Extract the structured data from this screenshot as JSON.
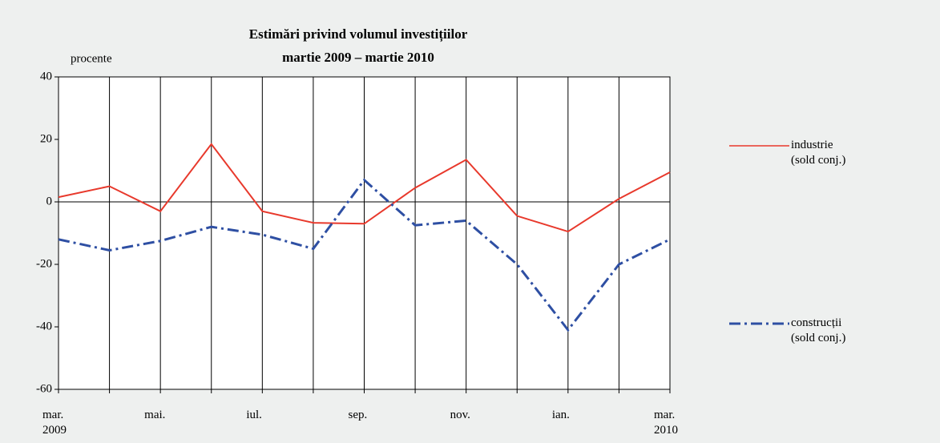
{
  "chart_data": {
    "type": "line",
    "title": "Estimări privind volumul investițiilor",
    "subtitle": "martie 2009 – martie 2010",
    "y_label": "procente",
    "categories": [
      "mar.\n2009",
      null,
      "mai.",
      null,
      "iul.",
      null,
      "sep.",
      null,
      "nov.",
      null,
      "ian.",
      null,
      "mar.\n2010"
    ],
    "series": [
      {
        "name": "industrie\n(sold conj.)",
        "color": "#e8392c",
        "dash": "solid",
        "values": [
          1.5,
          5,
          -3,
          18.5,
          -3,
          -6.7,
          -7,
          4.5,
          13.5,
          -4.5,
          -9.5,
          1,
          9.5
        ]
      },
      {
        "name": "construcții\n(sold conj.)",
        "color": "#2e4fa3",
        "dash": "dashdot",
        "values": [
          -12,
          -15.5,
          -12.5,
          -8,
          -10.5,
          -15,
          7,
          -7.5,
          -6,
          -20,
          -41,
          -20,
          -12
        ]
      }
    ],
    "ylim": [
      -60,
      40
    ],
    "yticks": [
      -60,
      -40,
      -20,
      0,
      20,
      40
    ],
    "x_grid": true
  }
}
